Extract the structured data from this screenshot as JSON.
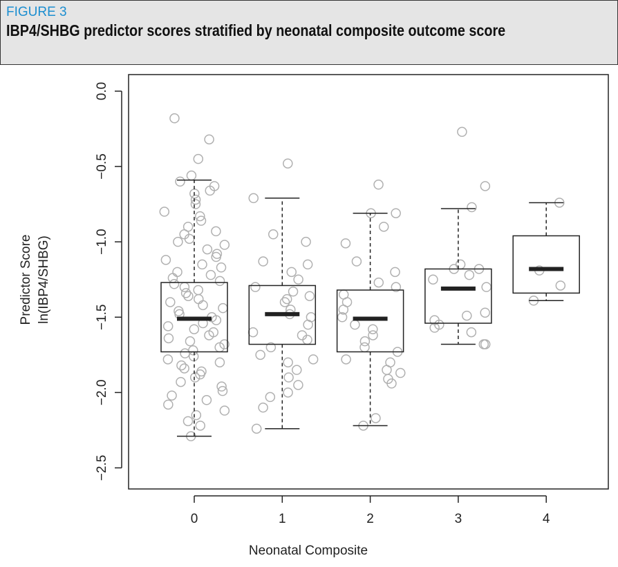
{
  "chart_data": {
    "type": "box",
    "figure_label": "FIGURE 3",
    "title": "IBP4/SHBG predictor scores stratified by neonatal composite outcome score",
    "xlabel": "Neonatal Composite",
    "ylabel": [
      "Predictor  Score",
      "ln(IBP4/SHBG)"
    ],
    "categories": [
      "0",
      "1",
      "2",
      "3",
      "4"
    ],
    "point_color": "#b0b0b0",
    "box_color": "#222222",
    "ylim": [
      -2.64,
      0.11
    ],
    "yticks": [
      {
        "value": 0,
        "label": "0.0"
      },
      {
        "value": -0.5,
        "label": "−0.5"
      },
      {
        "value": -1,
        "label": "−1.0"
      },
      {
        "value": -1.5,
        "label": "−1.5"
      },
      {
        "value": -2,
        "label": "−2.0"
      },
      {
        "value": -2.5,
        "label": "−2.5"
      }
    ],
    "boxes": [
      {
        "whisker_low": -2.29,
        "q1": -1.73,
        "median": -1.51,
        "q3": -1.27,
        "whisker_high": -0.59,
        "points": [
          -0.18,
          -0.32,
          -0.45,
          -0.56,
          -0.6,
          -0.63,
          -0.66,
          -0.68,
          -0.72,
          -0.75,
          -0.8,
          -0.83,
          -0.86,
          -0.9,
          -0.93,
          -0.95,
          -0.98,
          -1.0,
          -1.02,
          -1.05,
          -1.08,
          -1.1,
          -1.12,
          -1.15,
          -1.17,
          -1.2,
          -1.22,
          -1.24,
          -1.26,
          -1.28,
          -1.3,
          -1.32,
          -1.34,
          -1.36,
          -1.38,
          -1.4,
          -1.42,
          -1.44,
          -1.46,
          -1.48,
          -1.5,
          -1.52,
          -1.54,
          -1.56,
          -1.58,
          -1.6,
          -1.62,
          -1.64,
          -1.66,
          -1.68,
          -1.7,
          -1.72,
          -1.74,
          -1.76,
          -1.78,
          -1.8,
          -1.82,
          -1.84,
          -1.86,
          -1.88,
          -1.9,
          -1.93,
          -1.96,
          -1.99,
          -2.02,
          -2.05,
          -2.08,
          -2.12,
          -2.15,
          -2.19,
          -2.22,
          -2.29
        ]
      },
      {
        "whisker_low": -2.24,
        "q1": -1.68,
        "median": -1.48,
        "q3": -1.29,
        "whisker_high": -0.71,
        "points": [
          -0.48,
          -0.71,
          -0.95,
          -1.0,
          -1.13,
          -1.15,
          -1.2,
          -1.25,
          -1.3,
          -1.33,
          -1.36,
          -1.38,
          -1.4,
          -1.45,
          -1.48,
          -1.5,
          -1.55,
          -1.6,
          -1.62,
          -1.65,
          -1.7,
          -1.75,
          -1.78,
          -1.8,
          -1.85,
          -1.9,
          -1.95,
          -2.0,
          -2.03,
          -2.1,
          -2.24
        ]
      },
      {
        "whisker_low": -2.22,
        "q1": -1.73,
        "median": -1.51,
        "q3": -1.32,
        "whisker_high": -0.81,
        "points": [
          -0.62,
          -0.81,
          -0.81,
          -0.9,
          -1.01,
          -1.13,
          -1.2,
          -1.27,
          -1.3,
          -1.35,
          -1.4,
          -1.45,
          -1.5,
          -1.55,
          -1.58,
          -1.62,
          -1.66,
          -1.7,
          -1.73,
          -1.78,
          -1.8,
          -1.85,
          -1.87,
          -1.91,
          -1.94,
          -2.17,
          -2.22
        ]
      },
      {
        "whisker_low": -1.68,
        "q1": -1.54,
        "median": -1.31,
        "q3": -1.18,
        "whisker_high": -0.78,
        "points": [
          -0.27,
          -0.63,
          -0.77,
          -1.15,
          -1.18,
          -1.18,
          -1.22,
          -1.25,
          -1.3,
          -1.47,
          -1.49,
          -1.52,
          -1.55,
          -1.57,
          -1.6,
          -1.68,
          -1.68
        ]
      },
      {
        "whisker_low": -1.39,
        "q1": -1.34,
        "median": -1.18,
        "q3": -0.96,
        "whisker_high": -0.74,
        "points": [
          -0.74,
          -1.19,
          -1.29,
          -1.39
        ]
      }
    ]
  }
}
